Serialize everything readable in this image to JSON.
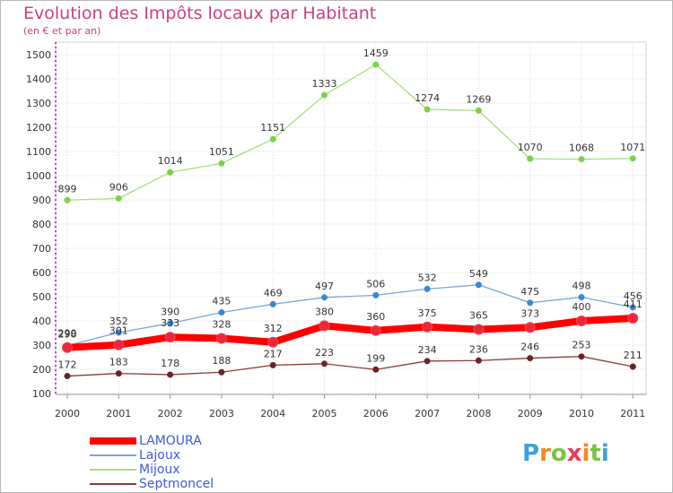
{
  "title": "Evolution des Impôts locaux par Habitant",
  "subtitle": "(en € et par an)",
  "logo_text": "Proxiti",
  "colors": {
    "title": "#cc3f7e",
    "grid": "#d9d9d9",
    "axis": "#c000c0",
    "legend_text": "#3b5bd6"
  },
  "chart_data": {
    "type": "line",
    "title": "Evolution des Impôts locaux par Habitant",
    "subtitle": "(en € et par an)",
    "xlabel": "",
    "ylabel": "",
    "x": [
      "2000",
      "2001",
      "2002",
      "2003",
      "2004",
      "2005",
      "2006",
      "2007",
      "2008",
      "2009",
      "2010",
      "2011"
    ],
    "ylim": [
      100,
      1500
    ],
    "yticks": [
      100,
      200,
      300,
      400,
      500,
      600,
      700,
      800,
      900,
      1000,
      1100,
      1200,
      1300,
      1400,
      1500
    ],
    "grid": true,
    "legend_position": "bottom-left",
    "series": [
      {
        "name": "LAMOURA",
        "color": "#ff0000",
        "marker": "#e8283c",
        "width": 8,
        "values": [
          290,
          301,
          333,
          328,
          312,
          380,
          360,
          375,
          365,
          373,
          400,
          411
        ]
      },
      {
        "name": "Lajoux",
        "color": "#79a6d8",
        "marker": "#3b86d6",
        "width": 1.3,
        "values": [
          298,
          352,
          390,
          435,
          469,
          497,
          506,
          532,
          549,
          475,
          498,
          456
        ]
      },
      {
        "name": "Mijoux",
        "color": "#a6e07a",
        "marker": "#7ed04a",
        "width": 1.3,
        "values": [
          899,
          906,
          1014,
          1051,
          1151,
          1333,
          1459,
          1274,
          1269,
          1070,
          1068,
          1071
        ]
      },
      {
        "name": "Septmoncel",
        "color": "#8b3a3a",
        "marker": "#6b2424",
        "width": 1.3,
        "values": [
          172,
          183,
          178,
          188,
          217,
          223,
          199,
          234,
          236,
          246,
          253,
          211
        ]
      }
    ]
  }
}
